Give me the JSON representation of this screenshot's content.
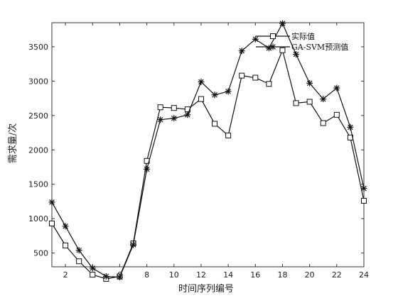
{
  "chart_data": {
    "type": "line",
    "xlabel": "时间序列编号",
    "ylabel": "需求量/次",
    "xlim": [
      1,
      24
    ],
    "ylim": [
      300,
      3850
    ],
    "xticks": [
      2,
      4,
      6,
      8,
      10,
      12,
      14,
      16,
      18,
      20,
      22,
      24
    ],
    "yticks": [
      500,
      1000,
      1500,
      2000,
      2500,
      3000,
      3500
    ],
    "grid": false,
    "legend_position": "top-right",
    "x": [
      1,
      2,
      3,
      4,
      5,
      6,
      7,
      8,
      9,
      10,
      11,
      12,
      13,
      14,
      15,
      16,
      17,
      18,
      19,
      20,
      21,
      22,
      23,
      24
    ],
    "series": [
      {
        "name": "实际值",
        "marker": "square",
        "values": [
          930,
          610,
          380,
          185,
          125,
          160,
          640,
          1840,
          2620,
          2610,
          2590,
          2740,
          2380,
          2210,
          3080,
          3050,
          2960,
          3450,
          2680,
          2700,
          2390,
          2510,
          2180,
          1260
        ]
      },
      {
        "name": "GA-SVM预测值",
        "marker": "asterisk",
        "values": [
          1240,
          890,
          540,
          280,
          160,
          150,
          620,
          1720,
          2440,
          2460,
          2510,
          2990,
          2800,
          2850,
          3440,
          3610,
          3480,
          3840,
          3390,
          2970,
          2740,
          2900,
          2330,
          1440
        ]
      }
    ]
  }
}
